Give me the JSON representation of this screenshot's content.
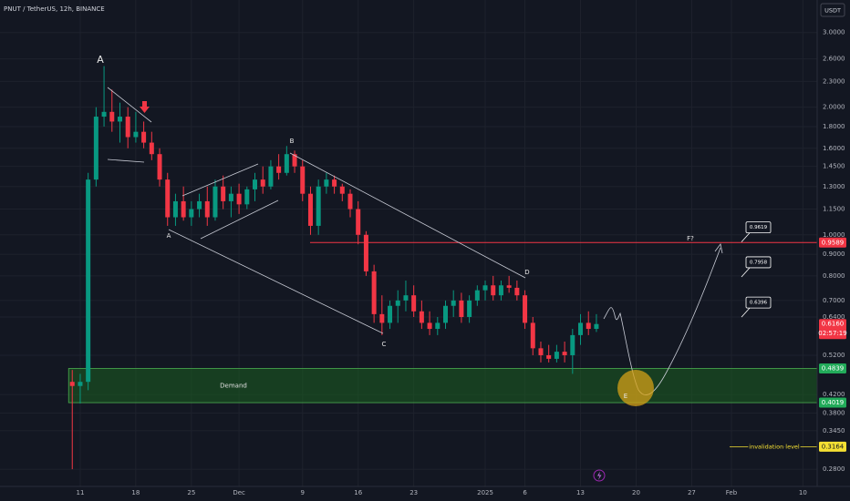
{
  "chart_data": {
    "type": "candlestick",
    "title": "PNUT / TetherUS, 12h, BINANCE",
    "currency": "USDT",
    "log_scale": true,
    "grid": true,
    "up_color": "#089981",
    "down_color": "#f23645",
    "ylim": [
      0.255,
      3.58
    ],
    "yticks": [
      {
        "value": 3.0,
        "label": "3.0000"
      },
      {
        "value": 2.6,
        "label": "2.6000"
      },
      {
        "value": 2.3,
        "label": "2.3000"
      },
      {
        "value": 2.0,
        "label": "2.0000"
      },
      {
        "value": 1.8,
        "label": "1.8000"
      },
      {
        "value": 1.6,
        "label": "1.6000"
      },
      {
        "value": 1.45,
        "label": "1.4500"
      },
      {
        "value": 1.3,
        "label": "1.3000"
      },
      {
        "value": 1.15,
        "label": "1.1500"
      },
      {
        "value": 1.0,
        "label": "1.0000"
      },
      {
        "value": 0.9,
        "label": "0.9000"
      },
      {
        "value": 0.8,
        "label": "0.8000"
      },
      {
        "value": 0.7,
        "label": "0.7000"
      },
      {
        "value": 0.64,
        "label": "0.6400"
      },
      {
        "value": 0.52,
        "label": "0.5200"
      },
      {
        "value": 0.42,
        "label": "0.4200"
      },
      {
        "value": 0.38,
        "label": "0.3800"
      },
      {
        "value": 0.345,
        "label": "0.3450"
      },
      {
        "value": 0.28,
        "label": "0.2800"
      }
    ],
    "xlim": [
      -10.1,
      92.8
    ],
    "xticks": [
      {
        "value": 0,
        "label": "11"
      },
      {
        "value": 7,
        "label": "18"
      },
      {
        "value": 14,
        "label": "25"
      },
      {
        "value": 20,
        "label": "Dec"
      },
      {
        "value": 28,
        "label": "9"
      },
      {
        "value": 35,
        "label": "16"
      },
      {
        "value": 42,
        "label": "23"
      },
      {
        "value": 51,
        "label": "2025"
      },
      {
        "value": 56,
        "label": "6"
      },
      {
        "value": 63,
        "label": "13"
      },
      {
        "value": 70,
        "label": "20"
      },
      {
        "value": 77,
        "label": "27"
      },
      {
        "value": 82,
        "label": "Feb"
      },
      {
        "value": 91,
        "label": "10"
      }
    ],
    "x": [
      -1,
      0,
      1,
      2,
      3,
      4,
      5,
      6,
      7,
      8,
      9,
      10,
      11,
      12,
      13,
      14,
      15,
      16,
      17,
      18,
      19,
      20,
      21,
      22,
      23,
      24,
      25,
      26,
      27,
      28,
      29,
      30,
      31,
      32,
      33,
      34,
      35,
      36,
      37,
      38,
      39,
      40,
      41,
      42,
      43,
      44,
      45,
      46,
      47,
      48,
      49,
      50,
      51,
      52,
      53,
      54,
      55,
      56,
      57,
      58,
      59,
      60,
      61,
      62,
      63,
      64,
      65
    ],
    "open": [
      0.45,
      0.44,
      0.45,
      1.35,
      1.9,
      1.95,
      1.85,
      1.9,
      1.7,
      1.75,
      1.65,
      1.55,
      1.35,
      1.1,
      1.2,
      1.1,
      1.15,
      1.2,
      1.1,
      1.3,
      1.2,
      1.25,
      1.18,
      1.28,
      1.35,
      1.3,
      1.45,
      1.4,
      1.55,
      1.45,
      1.25,
      1.05,
      1.3,
      1.35,
      1.3,
      1.25,
      1.15,
      1.0,
      0.82,
      0.65,
      0.62,
      0.68,
      0.7,
      0.72,
      0.66,
      0.62,
      0.6,
      0.62,
      0.68,
      0.7,
      0.64,
      0.7,
      0.74,
      0.76,
      0.72,
      0.76,
      0.75,
      0.72,
      0.62,
      0.54,
      0.52,
      0.51,
      0.53,
      0.52,
      0.58,
      0.62,
      0.6
    ],
    "high": [
      0.48,
      0.47,
      1.4,
      2.0,
      2.5,
      2.2,
      2.05,
      2.0,
      1.95,
      1.85,
      1.75,
      1.6,
      1.4,
      1.25,
      1.3,
      1.2,
      1.25,
      1.3,
      1.35,
      1.38,
      1.3,
      1.32,
      1.3,
      1.4,
      1.45,
      1.5,
      1.55,
      1.62,
      1.58,
      1.5,
      1.3,
      1.35,
      1.4,
      1.38,
      1.32,
      1.28,
      1.2,
      1.02,
      0.85,
      0.72,
      0.7,
      0.74,
      0.78,
      0.76,
      0.7,
      0.66,
      0.64,
      0.7,
      0.74,
      0.73,
      0.72,
      0.76,
      0.78,
      0.8,
      0.78,
      0.8,
      0.78,
      0.74,
      0.64,
      0.56,
      0.55,
      0.55,
      0.56,
      0.6,
      0.65,
      0.66,
      0.65
    ],
    "low": [
      0.28,
      0.4,
      0.43,
      1.3,
      1.8,
      1.75,
      1.65,
      1.6,
      1.65,
      1.6,
      1.5,
      1.3,
      1.05,
      1.05,
      1.08,
      1.05,
      1.1,
      1.05,
      1.08,
      1.15,
      1.1,
      1.12,
      1.15,
      1.2,
      1.25,
      1.28,
      1.35,
      1.38,
      1.4,
      1.2,
      1.0,
      1.0,
      1.25,
      1.25,
      1.2,
      1.1,
      0.95,
      0.8,
      0.62,
      0.58,
      0.6,
      0.62,
      0.66,
      0.64,
      0.6,
      0.58,
      0.58,
      0.6,
      0.64,
      0.62,
      0.62,
      0.68,
      0.7,
      0.7,
      0.7,
      0.73,
      0.7,
      0.6,
      0.52,
      0.5,
      0.5,
      0.5,
      0.5,
      0.47,
      0.55,
      0.58,
      0.59
    ],
    "close": [
      0.44,
      0.45,
      1.35,
      1.9,
      1.95,
      1.85,
      1.9,
      1.7,
      1.75,
      1.65,
      1.55,
      1.35,
      1.1,
      1.2,
      1.1,
      1.15,
      1.2,
      1.1,
      1.3,
      1.2,
      1.25,
      1.18,
      1.28,
      1.35,
      1.3,
      1.45,
      1.4,
      1.55,
      1.45,
      1.25,
      1.05,
      1.3,
      1.35,
      1.3,
      1.25,
      1.15,
      1.0,
      0.82,
      0.65,
      0.62,
      0.68,
      0.7,
      0.72,
      0.66,
      0.62,
      0.6,
      0.62,
      0.68,
      0.7,
      0.64,
      0.7,
      0.74,
      0.76,
      0.72,
      0.76,
      0.75,
      0.72,
      0.62,
      0.54,
      0.52,
      0.51,
      0.53,
      0.52,
      0.58,
      0.62,
      0.6,
      0.616
    ],
    "resistance": 0.9589,
    "demand": {
      "label": "Demand",
      "top": 0.4839,
      "bottom": 0.4019
    },
    "invalidation": {
      "label": "invalidation level",
      "value": 0.3164
    },
    "price_labels": [
      {
        "value": 0.9589,
        "color": "#f23645"
      },
      {
        "value": 0.616,
        "label": "0.6160",
        "color": "#f23645"
      },
      {
        "value": 0.4839,
        "color": "#22ab5a"
      },
      {
        "value": 0.4019,
        "color": "#22ab5a"
      },
      {
        "value": 0.3164,
        "color": "#f5e033"
      }
    ],
    "countdown": "02:57:19",
    "targets": [
      0.9619,
      0.7958,
      0.6396
    ],
    "wave_labels": [
      "A",
      "A",
      "B",
      "C",
      "D",
      "E",
      "F?"
    ]
  }
}
